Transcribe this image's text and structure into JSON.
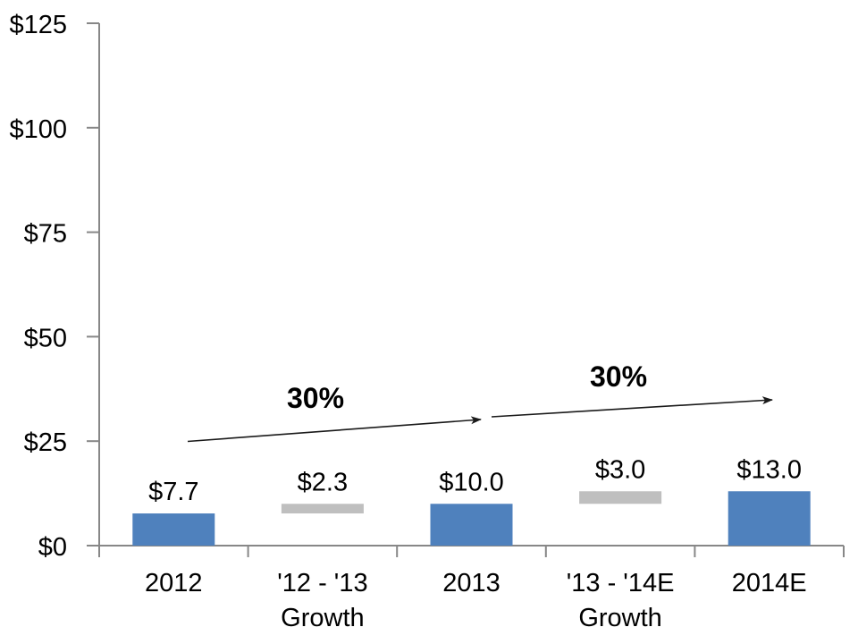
{
  "chart_data": {
    "type": "bar",
    "subtype": "waterfall",
    "categories": [
      {
        "lines": [
          "2012"
        ]
      },
      {
        "lines": [
          "'12 - '13",
          "Growth"
        ]
      },
      {
        "lines": [
          "2013"
        ]
      },
      {
        "lines": [
          "'13 - '14E",
          "Growth"
        ]
      },
      {
        "lines": [
          "2014E"
        ]
      }
    ],
    "bars": [
      {
        "category": "2012",
        "role": "total",
        "base": 0,
        "value": 7.7,
        "label": "$7.7"
      },
      {
        "category": "'12 - '13 Growth",
        "role": "delta",
        "base": 7.7,
        "value": 2.3,
        "label": "$2.3"
      },
      {
        "category": "2013",
        "role": "total",
        "base": 0,
        "value": 10.0,
        "label": "$10.0"
      },
      {
        "category": "'13 - '14E Growth",
        "role": "delta",
        "base": 10.0,
        "value": 3.0,
        "label": "$3.0"
      },
      {
        "category": "2014E",
        "role": "total",
        "base": 0,
        "value": 13.0,
        "label": "$13.0"
      }
    ],
    "y_axis": {
      "min": 0,
      "max": 125,
      "tick_step": 25,
      "tick_labels": [
        "$0",
        "$25",
        "$50",
        "$75",
        "$100",
        "$125"
      ]
    },
    "annotations": [
      {
        "label": "30%",
        "from": "2012",
        "to": "2013"
      },
      {
        "label": "30%",
        "from": "2013",
        "to": "2014E"
      }
    ],
    "grid": false,
    "legend": false,
    "colors": {
      "total_bar": "#4f81bd",
      "delta_bar": "#bfbfbf",
      "axis": "#878787",
      "arrow": "#1a1a1a",
      "text": "#000000"
    }
  }
}
